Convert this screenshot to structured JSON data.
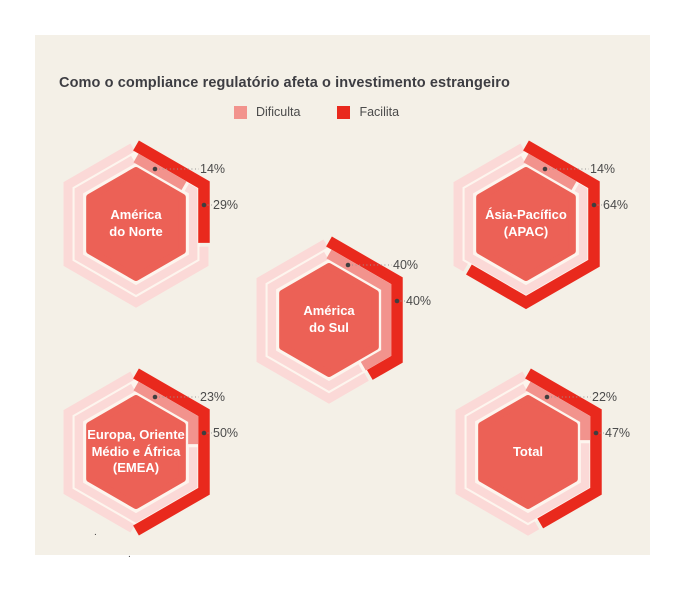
{
  "header": {
    "title": "Como o compliance regulatório afeta o investimento estrangeiro"
  },
  "legend": {
    "items": [
      {
        "label": "Dificulta",
        "color": "#f2938d"
      },
      {
        "label": "Facilita",
        "color": "#e9291d"
      }
    ]
  },
  "chart_data": {
    "type": "hexagonal_donut_multiples",
    "title": "Como o compliance regulatório afeta o investimento estrangeiro",
    "unit": "%",
    "legend": [
      "Dificulta",
      "Facilita"
    ],
    "legend_position": "top",
    "value_range": [
      0,
      100
    ],
    "colors": {
      "dificulta": "#f2938d",
      "facilita": "#e9291d",
      "track": "#fbd9d7",
      "center": "#ec6156",
      "gap": "#fdf5ee",
      "panel": "#f4f0e7",
      "marker": "#3f3f3f",
      "leader": "#979797",
      "region_text": "#ffffff",
      "value_text": "#4b4b4b"
    },
    "regions": [
      {
        "name": "América\ndo Norte",
        "dificulta": 14,
        "facilita": 29
      },
      {
        "name": "Ásia-Pacífico\n(APAC)",
        "dificulta": 14,
        "facilita": 64
      },
      {
        "name": "América\ndo Sul",
        "dificulta": 40,
        "facilita": 40
      },
      {
        "name": "Europa, Oriente\nMédio e África\n(EMEA)",
        "dificulta": 23,
        "facilita": 50
      },
      {
        "name": "Total",
        "dificulta": 22,
        "facilita": 47
      }
    ]
  },
  "footnote": {
    "mark": "."
  }
}
